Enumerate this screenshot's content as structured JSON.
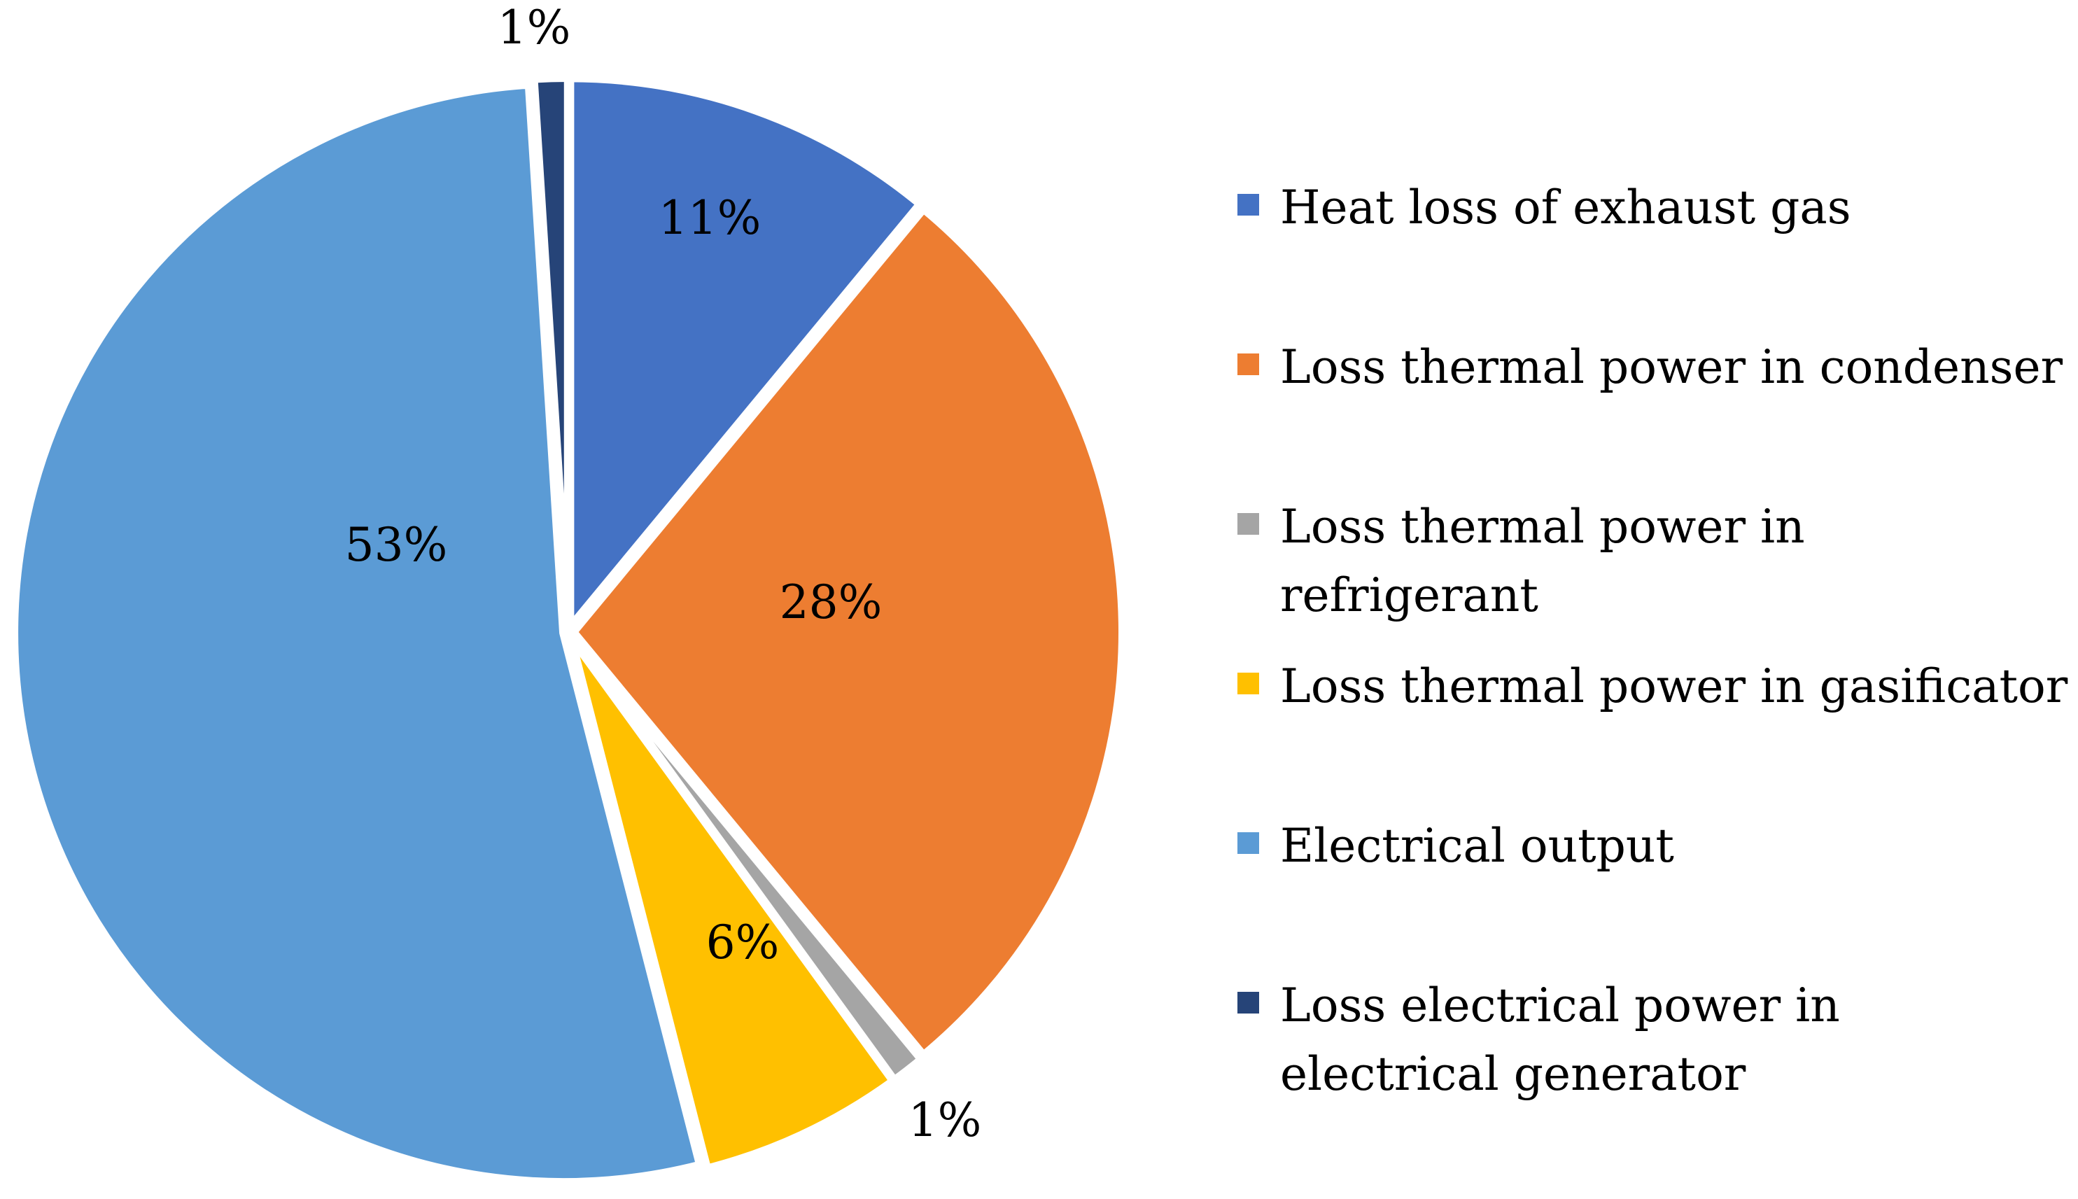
{
  "chart_data": {
    "type": "pie",
    "title": "",
    "start_angle_deg": 0,
    "direction": "clockwise",
    "legend_position": "right",
    "slices": [
      {
        "name": "Heat loss of exhaust gas",
        "value": 11,
        "label": "11%",
        "color": "#4472C4"
      },
      {
        "name": "Loss thermal power in condenser",
        "value": 28,
        "label": "28%",
        "color": "#ED7D31"
      },
      {
        "name": "Loss thermal power in refrigerant",
        "value": 1,
        "label": "1%",
        "color": "#A5A5A5"
      },
      {
        "name": "Loss thermal power in gasificator",
        "value": 6,
        "label": "6%",
        "color": "#FFC000"
      },
      {
        "name": "Electrical output",
        "value": 53,
        "label": "53%",
        "color": "#5B9BD5"
      },
      {
        "name": "Loss electrical power in electrical generator",
        "value": 1,
        "label": "1%",
        "color": "#264478"
      }
    ]
  }
}
